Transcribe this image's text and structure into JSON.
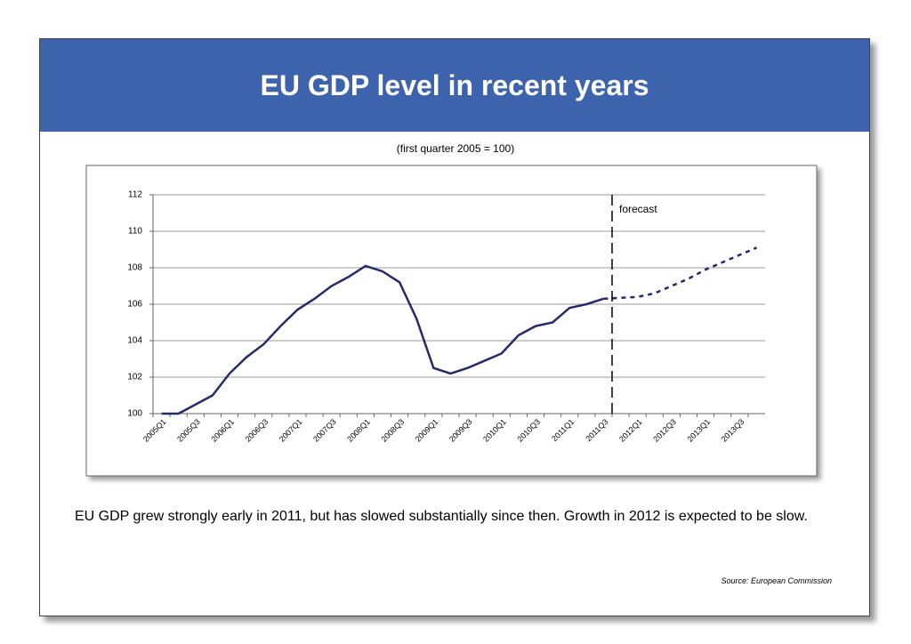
{
  "chart_data": {
    "type": "line",
    "title": "EU GDP level in recent years",
    "subtitle": "(first quarter 2005 = 100)",
    "categories": [
      "2005Q1",
      null,
      "2005Q3",
      null,
      "2006Q1",
      null,
      "2006Q3",
      null,
      "2007Q1",
      null,
      "2007Q3",
      null,
      "2008Q1",
      null,
      "2008Q3",
      null,
      "2009Q1",
      null,
      "2009Q3",
      null,
      "2010Q1",
      null,
      "2010Q3",
      null,
      "2011Q1",
      null,
      "2011Q3",
      null,
      "2012Q1",
      null,
      "2012Q3",
      null,
      "2013Q1",
      null,
      "2013Q3",
      null
    ],
    "series": [
      {
        "color": "#262a6b",
        "style": "solid",
        "values": [
          100,
          100,
          100.5,
          101.0,
          102.2,
          103.1,
          103.8,
          104.8,
          105.7,
          106.3,
          107.0,
          107.5,
          108.1,
          107.8,
          107.2,
          105.2,
          102.5,
          102.2,
          102.5,
          102.9,
          103.3,
          104.3,
          104.8,
          105.0,
          105.8,
          106.0,
          106.3,
          null,
          null,
          null,
          null,
          null,
          null,
          null,
          null,
          null
        ]
      },
      {
        "color": "#262a6b",
        "style": "dashed",
        "values": [
          null,
          null,
          null,
          null,
          null,
          null,
          null,
          null,
          null,
          null,
          null,
          null,
          null,
          null,
          null,
          null,
          null,
          null,
          null,
          null,
          null,
          null,
          null,
          null,
          null,
          null,
          106.3,
          106.35,
          106.4,
          106.6,
          107.0,
          107.4,
          107.9,
          108.3,
          108.7,
          109.1
        ]
      }
    ],
    "ylim": [
      100,
      112
    ],
    "yticks": [
      100,
      102,
      104,
      106,
      108,
      110,
      112
    ],
    "grid": true,
    "annotations": [
      {
        "text": "forecast"
      }
    ],
    "note": "EU GDP grew strongly early in 2011, but has slowed substantially since then. Growth in 2012 is expected to be slow.",
    "source": "Source:  European  Commission"
  }
}
